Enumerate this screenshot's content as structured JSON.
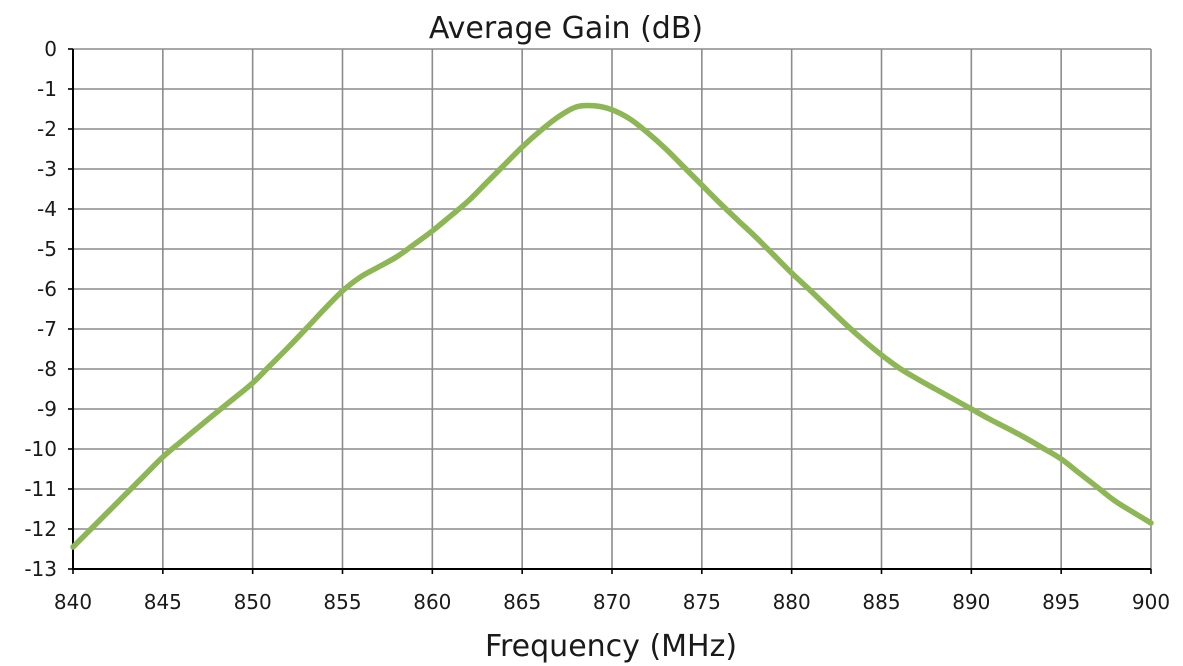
{
  "chart_data": {
    "type": "line",
    "title": "Average Gain (dB)",
    "xlabel": "Frequency (MHz)",
    "ylabel": "",
    "xlim": [
      840,
      900
    ],
    "ylim": [
      -13,
      0
    ],
    "xticks": [
      840,
      845,
      850,
      855,
      860,
      865,
      870,
      875,
      880,
      885,
      890,
      895,
      900
    ],
    "yticks": [
      0,
      -1,
      -2,
      -3,
      -4,
      -5,
      -6,
      -7,
      -8,
      -9,
      -10,
      -11,
      -12,
      -13
    ],
    "grid": true,
    "legend": "none",
    "series": [
      {
        "color": "#8db654",
        "x": [
          840,
          841,
          842,
          843,
          844,
          845,
          846,
          847,
          848,
          849,
          850,
          851,
          852,
          853,
          854,
          855,
          856,
          857,
          858,
          859,
          860,
          861,
          862,
          863,
          864,
          865,
          866,
          867,
          868,
          869,
          870,
          871,
          872,
          873,
          874,
          875,
          876,
          877,
          878,
          879,
          880,
          881,
          882,
          883,
          884,
          885,
          886,
          887,
          888,
          889,
          890,
          891,
          892,
          893,
          894,
          895,
          896,
          897,
          898,
          899,
          900
        ],
        "y": [
          -12.45,
          -12.0,
          -11.55,
          -11.1,
          -10.65,
          -10.2,
          -9.82,
          -9.45,
          -9.08,
          -8.72,
          -8.35,
          -7.9,
          -7.45,
          -6.98,
          -6.5,
          -6.05,
          -5.7,
          -5.45,
          -5.2,
          -4.88,
          -4.55,
          -4.18,
          -3.8,
          -3.35,
          -2.9,
          -2.45,
          -2.05,
          -1.7,
          -1.45,
          -1.42,
          -1.52,
          -1.75,
          -2.1,
          -2.5,
          -2.95,
          -3.4,
          -3.85,
          -4.28,
          -4.7,
          -5.15,
          -5.6,
          -6.02,
          -6.45,
          -6.88,
          -7.28,
          -7.65,
          -7.98,
          -8.25,
          -8.5,
          -8.75,
          -9.0,
          -9.25,
          -9.48,
          -9.72,
          -9.98,
          -10.25,
          -10.6,
          -10.95,
          -11.3,
          -11.58,
          -11.85
        ]
      }
    ]
  }
}
